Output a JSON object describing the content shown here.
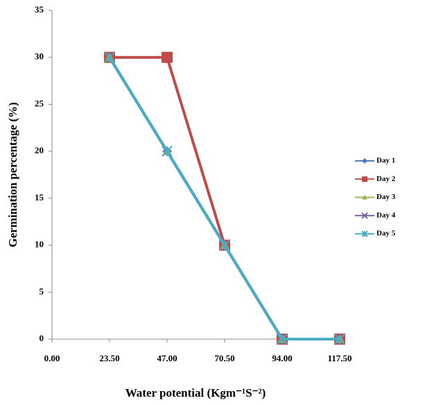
{
  "chart_data": {
    "type": "line",
    "x_label": "Water potential (Kgm⁻¹S⁻²)",
    "y_label": "Germination percentage (%)",
    "x": [
      23.5,
      47,
      70.5,
      94,
      117.5
    ],
    "series": [
      {
        "name": "Day 1",
        "color": "#4a7ebb",
        "marker": "diamond",
        "values": [
          30,
          20,
          10,
          0,
          0
        ]
      },
      {
        "name": "Day 2",
        "color": "#be4b48",
        "marker": "square",
        "values": [
          30,
          30,
          10,
          0,
          0
        ]
      },
      {
        "name": "Day 3",
        "color": "#98b954",
        "marker": "triangle",
        "values": [
          30,
          20,
          10,
          0,
          0
        ]
      },
      {
        "name": "Day 4",
        "color": "#7d60a0",
        "marker": "x",
        "values": [
          30,
          20,
          10,
          0,
          0
        ]
      },
      {
        "name": "Day 5",
        "color": "#4bacc6",
        "marker": "star",
        "values": [
          30,
          20,
          10,
          0,
          0
        ]
      }
    ],
    "xlim": [
      0,
      117.5
    ],
    "xticks": [
      {
        "value": 0,
        "label": "0.00"
      },
      {
        "value": 23.5,
        "label": "23.50"
      },
      {
        "value": 47,
        "label": "47.00"
      },
      {
        "value": 70.5,
        "label": "70.50"
      },
      {
        "value": 94,
        "label": "94.00"
      },
      {
        "value": 117.5,
        "label": "117.50"
      }
    ],
    "ylim": [
      0,
      35
    ],
    "yticks": [
      0,
      5,
      10,
      15,
      20,
      25,
      30,
      35
    ],
    "grid": false,
    "legend": "right"
  }
}
